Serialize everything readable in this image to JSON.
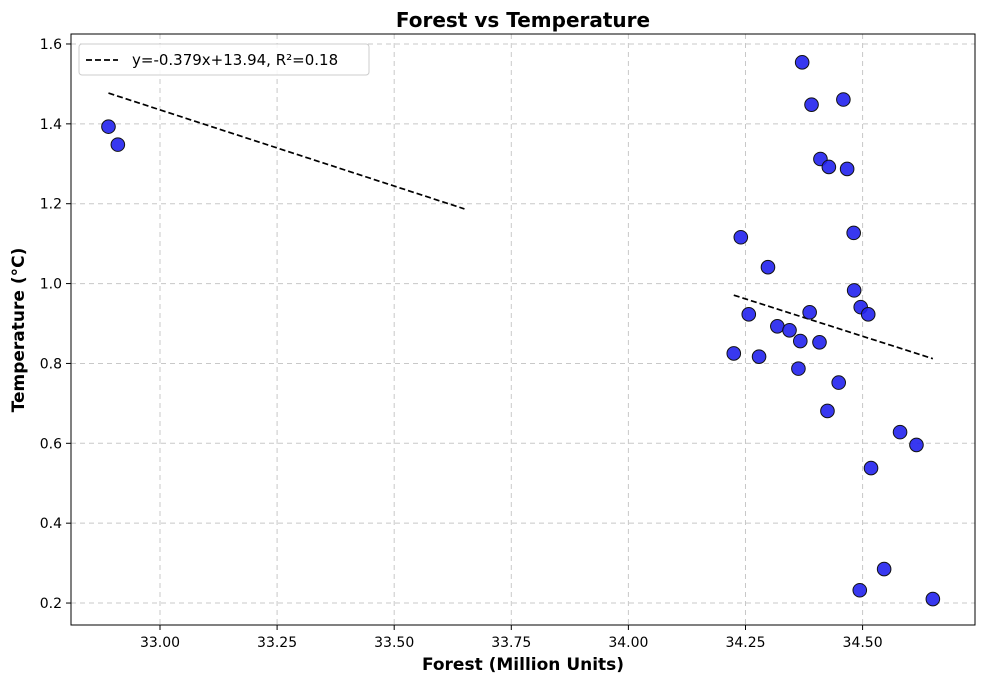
{
  "chart_data": {
    "type": "scatter",
    "title": "Forest vs Temperature",
    "xlabel": "Forest (Million Units)",
    "ylabel": "Temperature (°C)",
    "xlim": [
      32.81,
      34.74
    ],
    "ylim": [
      0.145,
      1.625
    ],
    "xticks": [
      33.0,
      33.25,
      33.5,
      33.75,
      34.0,
      34.25,
      34.5
    ],
    "xtick_labels": [
      "33.00",
      "33.25",
      "33.50",
      "33.75",
      "34.00",
      "34.25",
      "34.50"
    ],
    "yticks": [
      0.2,
      0.4,
      0.6,
      0.8,
      1.0,
      1.2,
      1.4,
      1.6
    ],
    "ytick_labels": [
      "0.2",
      "0.4",
      "0.6",
      "0.8",
      "1.0",
      "1.2",
      "1.4",
      "1.6"
    ],
    "grid": true,
    "legend_position": "top-left",
    "points": [
      {
        "x": 32.89,
        "y": 1.393
      },
      {
        "x": 32.91,
        "y": 1.348
      },
      {
        "x": 34.225,
        "y": 0.825
      },
      {
        "x": 34.24,
        "y": 1.116
      },
      {
        "x": 34.257,
        "y": 0.923
      },
      {
        "x": 34.279,
        "y": 0.817
      },
      {
        "x": 34.298,
        "y": 1.041
      },
      {
        "x": 34.318,
        "y": 0.893
      },
      {
        "x": 34.344,
        "y": 0.883
      },
      {
        "x": 34.363,
        "y": 0.787
      },
      {
        "x": 34.367,
        "y": 0.856
      },
      {
        "x": 34.371,
        "y": 1.554
      },
      {
        "x": 34.387,
        "y": 0.928
      },
      {
        "x": 34.391,
        "y": 1.448
      },
      {
        "x": 34.408,
        "y": 0.853
      },
      {
        "x": 34.41,
        "y": 1.312
      },
      {
        "x": 34.425,
        "y": 0.681
      },
      {
        "x": 34.428,
        "y": 1.292
      },
      {
        "x": 34.449,
        "y": 0.752
      },
      {
        "x": 34.459,
        "y": 1.461
      },
      {
        "x": 34.467,
        "y": 1.287
      },
      {
        "x": 34.481,
        "y": 1.127
      },
      {
        "x": 34.482,
        "y": 0.983
      },
      {
        "x": 34.494,
        "y": 0.232
      },
      {
        "x": 34.496,
        "y": 0.941
      },
      {
        "x": 34.512,
        "y": 0.923
      },
      {
        "x": 34.518,
        "y": 0.538
      },
      {
        "x": 34.546,
        "y": 0.285
      },
      {
        "x": 34.58,
        "y": 0.628
      },
      {
        "x": 34.615,
        "y": 0.596
      },
      {
        "x": 34.65,
        "y": 0.21
      }
    ],
    "trendline": {
      "label": "y=-0.379x+13.94, R²=0.18",
      "slope": -0.379,
      "intercept": 13.94,
      "segments": [
        {
          "x": [
            32.89,
            33.65
          ],
          "y": [
            1.477,
            1.187
          ]
        },
        {
          "x": [
            34.225,
            34.65
          ],
          "y": [
            0.971,
            0.812
          ]
        }
      ]
    },
    "colors": {
      "point_fill": "#2222ee",
      "point_edge": "#111111",
      "trendline": "#000000"
    }
  }
}
